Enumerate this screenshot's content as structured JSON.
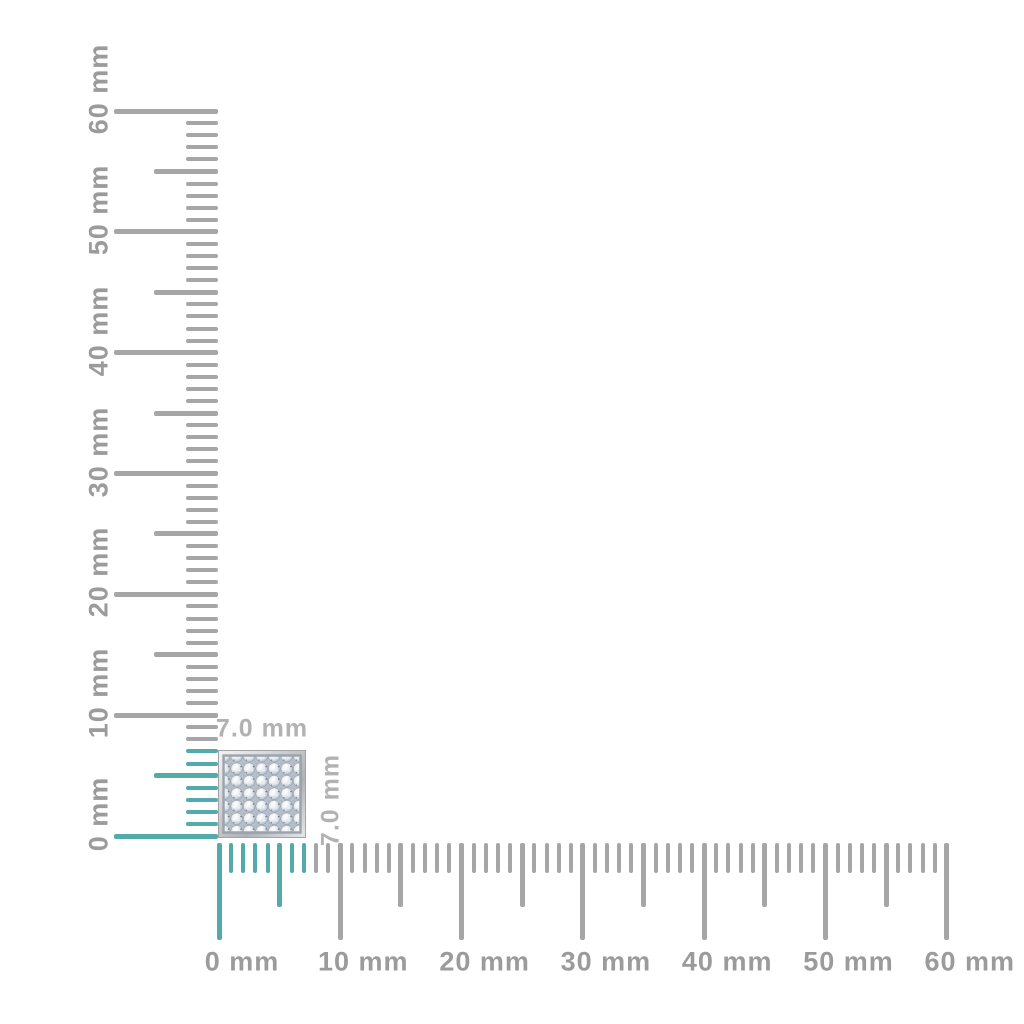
{
  "page": {
    "background": "#ffffff",
    "description": "Product dimension diagram: square pave stud shown against corner millimeter rulers"
  },
  "colors": {
    "tick_gray": "#a6a6a6",
    "axis_label_gray": "#9b9b9b",
    "highlight_teal": "#54aaaa",
    "dimension_label_gray": "#b2b2b2"
  },
  "vertical_ruler": {
    "unit": "mm",
    "min_mm": 0,
    "max_mm": 60,
    "minor_step_mm": 1,
    "half_step_mm": 5,
    "major_step_mm": 10,
    "labels": [
      "0 mm",
      "10 mm",
      "20 mm",
      "30 mm",
      "40 mm",
      "50 mm",
      "60 mm"
    ],
    "highlight_to_mm": 7
  },
  "horizontal_ruler": {
    "unit": "mm",
    "min_mm": 0,
    "max_mm": 60,
    "minor_step_mm": 1,
    "half_step_mm": 5,
    "major_step_mm": 10,
    "labels": [
      "0 mm",
      "10 mm",
      "20 mm",
      "30 mm",
      "40 mm",
      "50 mm",
      "60 mm"
    ],
    "highlight_to_mm": 7
  },
  "object": {
    "name": "square pave stud",
    "width_label": "7.0 mm",
    "height_label": "7.0 mm",
    "width_mm": 7.0,
    "height_mm": 7.0
  }
}
